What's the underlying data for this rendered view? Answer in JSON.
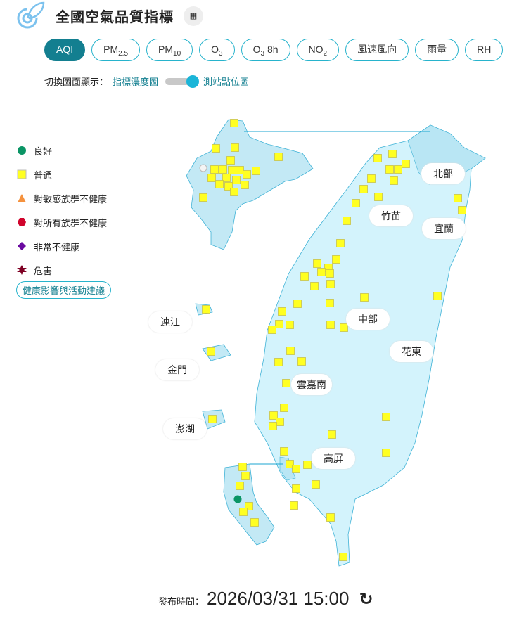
{
  "header": {
    "title": "全國空氣品質指標",
    "calculator_icon": "calculator-icon",
    "logo": "leaf-target-logo"
  },
  "tabs": [
    {
      "label": "AQI",
      "sub": "",
      "active": true
    },
    {
      "label": "PM",
      "sub": "2.5"
    },
    {
      "label": "PM",
      "sub": "10"
    },
    {
      "label": "O",
      "sub": "3"
    },
    {
      "label": "O",
      "sub": "3",
      "suffix": " 8h"
    },
    {
      "label": "NO",
      "sub": "2"
    },
    {
      "label": "風速風向",
      "sub": ""
    },
    {
      "label": "雨量",
      "sub": ""
    },
    {
      "label": "RH",
      "sub": ""
    }
  ],
  "display_switch": {
    "label": "切換圖面顯示：",
    "left": "指標濃度圖",
    "right": "測站點位圖",
    "state": "right"
  },
  "legend": [
    {
      "label": "良好",
      "color": "#0a9565",
      "shape": "circle"
    },
    {
      "label": "普通",
      "color": "#ffff22",
      "shape": "square"
    },
    {
      "label": "對敏感族群不健康",
      "color": "#f5923e",
      "shape": "triangle"
    },
    {
      "label": "對所有族群不健康",
      "color": "#d0042c",
      "shape": "hexagon"
    },
    {
      "label": "非常不健康",
      "color": "#6a0aa0",
      "shape": "diamond"
    },
    {
      "label": "危害",
      "color": "#7e0023",
      "shape": "star"
    }
  ],
  "advice_button": "健康影響與活動建議",
  "regions": {
    "north": "北部",
    "zhumiao": "竹苗",
    "yilan": "宜蘭",
    "central": "中部",
    "huadong": "花東",
    "yunjianan": "雲嘉南",
    "gaoping": "高屏",
    "lianjiang": "連江",
    "kinmen": "金門",
    "penghu": "澎湖"
  },
  "station_summary": {
    "good": 1,
    "moderate": 77,
    "offline": 1
  },
  "footer": {
    "label": "發布時間：",
    "time": "2026/03/31 15:00",
    "refresh_icon": "refresh-icon"
  }
}
